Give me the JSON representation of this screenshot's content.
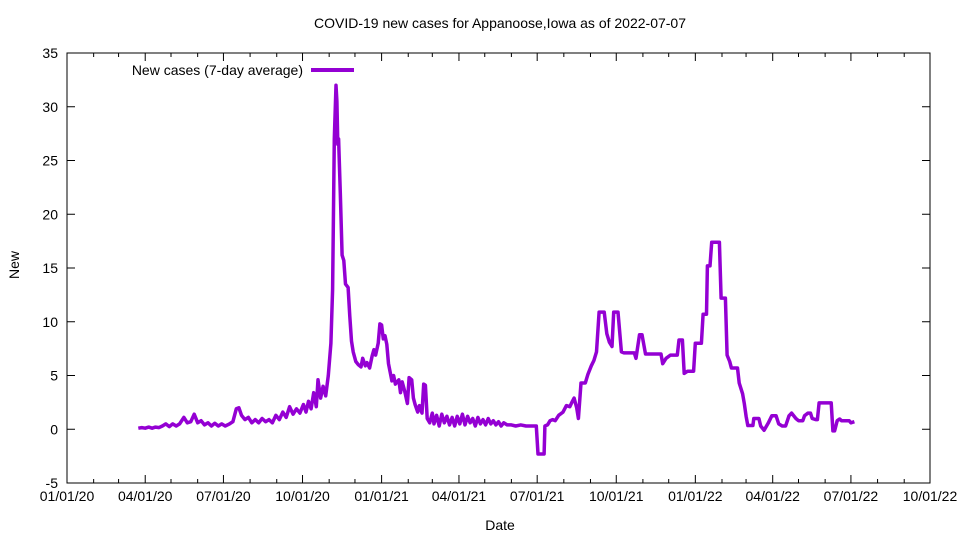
{
  "chart_data": {
    "type": "line",
    "title": "COVID-19 new cases for Appanoose,Iowa as of 2022-07-07",
    "xlabel": "Date",
    "ylabel": "New",
    "ylim": [
      -5,
      35
    ],
    "x_range": [
      "2020-01-01",
      "2022-10-01"
    ],
    "grid": false,
    "legend_position": "top-left-inside",
    "line_color": "#9400D3",
    "x_axis": {
      "tick_format": "MM/DD/YY",
      "minor_ticks": "monthly",
      "ticks": [
        {
          "label": "01/01/20",
          "date": "2020-01-01"
        },
        {
          "label": "04/01/20",
          "date": "2020-04-01"
        },
        {
          "label": "07/01/20",
          "date": "2020-07-01"
        },
        {
          "label": "10/01/20",
          "date": "2020-10-01"
        },
        {
          "label": "01/01/21",
          "date": "2021-01-01"
        },
        {
          "label": "04/01/21",
          "date": "2021-04-01"
        },
        {
          "label": "07/01/21",
          "date": "2021-07-01"
        },
        {
          "label": "10/01/21",
          "date": "2021-10-01"
        },
        {
          "label": "01/01/22",
          "date": "2022-01-01"
        },
        {
          "label": "04/01/22",
          "date": "2022-04-01"
        },
        {
          "label": "07/01/22",
          "date": "2022-07-01"
        },
        {
          "label": "10/01/22",
          "date": "2022-10-01"
        }
      ]
    },
    "y_axis": {
      "ticks": [
        -5,
        0,
        5,
        10,
        15,
        20,
        25,
        30,
        35
      ]
    },
    "series": [
      {
        "name": "New cases (7-day average)",
        "color": "#9400D3",
        "points": [
          [
            "2020-03-24",
            0.1
          ],
          [
            "2020-03-28",
            0.15
          ],
          [
            "2020-04-01",
            0.1
          ],
          [
            "2020-04-05",
            0.2
          ],
          [
            "2020-04-09",
            0.1
          ],
          [
            "2020-04-13",
            0.2
          ],
          [
            "2020-04-17",
            0.15
          ],
          [
            "2020-04-21",
            0.3
          ],
          [
            "2020-04-25",
            0.5
          ],
          [
            "2020-04-29",
            0.25
          ],
          [
            "2020-05-03",
            0.5
          ],
          [
            "2020-05-07",
            0.3
          ],
          [
            "2020-05-11",
            0.5
          ],
          [
            "2020-05-16",
            1.1
          ],
          [
            "2020-05-20",
            0.6
          ],
          [
            "2020-05-24",
            0.7
          ],
          [
            "2020-05-28",
            1.4
          ],
          [
            "2020-06-01",
            0.6
          ],
          [
            "2020-06-05",
            0.8
          ],
          [
            "2020-06-09",
            0.4
          ],
          [
            "2020-06-13",
            0.6
          ],
          [
            "2020-06-17",
            0.3
          ],
          [
            "2020-06-21",
            0.55
          ],
          [
            "2020-06-25",
            0.3
          ],
          [
            "2020-06-29",
            0.5
          ],
          [
            "2020-07-03",
            0.3
          ],
          [
            "2020-07-08",
            0.5
          ],
          [
            "2020-07-12",
            0.7
          ],
          [
            "2020-07-16",
            1.9
          ],
          [
            "2020-07-19",
            2.0
          ],
          [
            "2020-07-22",
            1.3
          ],
          [
            "2020-07-26",
            0.9
          ],
          [
            "2020-07-30",
            1.1
          ],
          [
            "2020-08-03",
            0.6
          ],
          [
            "2020-08-07",
            0.9
          ],
          [
            "2020-08-11",
            0.6
          ],
          [
            "2020-08-15",
            1.0
          ],
          [
            "2020-08-19",
            0.7
          ],
          [
            "2020-08-23",
            0.9
          ],
          [
            "2020-08-27",
            0.6
          ],
          [
            "2020-08-31",
            1.3
          ],
          [
            "2020-09-04",
            0.9
          ],
          [
            "2020-09-08",
            1.6
          ],
          [
            "2020-09-12",
            1.1
          ],
          [
            "2020-09-16",
            2.1
          ],
          [
            "2020-09-20",
            1.4
          ],
          [
            "2020-09-24",
            1.9
          ],
          [
            "2020-09-28",
            1.5
          ],
          [
            "2020-10-02",
            2.3
          ],
          [
            "2020-10-05",
            1.6
          ],
          [
            "2020-10-08",
            2.6
          ],
          [
            "2020-10-11",
            1.9
          ],
          [
            "2020-10-14",
            3.4
          ],
          [
            "2020-10-17",
            2.1
          ],
          [
            "2020-10-19",
            4.6
          ],
          [
            "2020-10-22",
            2.9
          ],
          [
            "2020-10-25",
            4.0
          ],
          [
            "2020-10-28",
            3.1
          ],
          [
            "2020-10-31",
            5.0
          ],
          [
            "2020-11-03",
            8.0
          ],
          [
            "2020-11-05",
            13.0
          ],
          [
            "2020-11-07",
            27.0
          ],
          [
            "2020-11-09",
            32.0
          ],
          [
            "2020-11-10",
            30.5
          ],
          [
            "2020-11-11",
            26.5
          ],
          [
            "2020-11-12",
            27.0
          ],
          [
            "2020-11-14",
            22.0
          ],
          [
            "2020-11-16",
            16.2
          ],
          [
            "2020-11-18",
            15.7
          ],
          [
            "2020-11-20",
            13.5
          ],
          [
            "2020-11-23",
            13.2
          ],
          [
            "2020-11-25",
            10.5
          ],
          [
            "2020-11-27",
            8.2
          ],
          [
            "2020-11-29",
            7.2
          ],
          [
            "2020-12-02",
            6.3
          ],
          [
            "2020-12-05",
            6.0
          ],
          [
            "2020-12-08",
            5.8
          ],
          [
            "2020-12-10",
            6.6
          ],
          [
            "2020-12-13",
            5.9
          ],
          [
            "2020-12-15",
            6.2
          ],
          [
            "2020-12-18",
            5.7
          ],
          [
            "2020-12-21",
            6.8
          ],
          [
            "2020-12-23",
            7.4
          ],
          [
            "2020-12-25",
            6.9
          ],
          [
            "2020-12-28",
            8.0
          ],
          [
            "2020-12-30",
            9.8
          ],
          [
            "2021-01-01",
            9.7
          ],
          [
            "2021-01-03",
            8.4
          ],
          [
            "2021-01-05",
            8.7
          ],
          [
            "2021-01-07",
            7.9
          ],
          [
            "2021-01-09",
            6.1
          ],
          [
            "2021-01-11",
            5.3
          ],
          [
            "2021-01-13",
            4.5
          ],
          [
            "2021-01-15",
            5.0
          ],
          [
            "2021-01-17",
            4.2
          ],
          [
            "2021-01-21",
            4.6
          ],
          [
            "2021-01-23",
            3.4
          ],
          [
            "2021-01-25",
            4.4
          ],
          [
            "2021-01-28",
            3.5
          ],
          [
            "2021-01-31",
            2.4
          ],
          [
            "2021-02-02",
            4.8
          ],
          [
            "2021-02-05",
            4.6
          ],
          [
            "2021-02-07",
            2.9
          ],
          [
            "2021-02-09",
            2.3
          ],
          [
            "2021-02-12",
            1.6
          ],
          [
            "2021-02-14",
            2.2
          ],
          [
            "2021-02-17",
            1.5
          ],
          [
            "2021-02-19",
            4.2
          ],
          [
            "2021-02-21",
            4.1
          ],
          [
            "2021-02-23",
            1.0
          ],
          [
            "2021-02-26",
            0.6
          ],
          [
            "2021-03-01",
            1.5
          ],
          [
            "2021-03-03",
            0.5
          ],
          [
            "2021-03-06",
            1.3
          ],
          [
            "2021-03-09",
            0.3
          ],
          [
            "2021-03-12",
            1.4
          ],
          [
            "2021-03-15",
            0.6
          ],
          [
            "2021-03-18",
            1.2
          ],
          [
            "2021-03-21",
            0.4
          ],
          [
            "2021-03-24",
            1.1
          ],
          [
            "2021-03-27",
            0.3
          ],
          [
            "2021-03-30",
            1.2
          ],
          [
            "2021-04-02",
            0.5
          ],
          [
            "2021-04-05",
            1.4
          ],
          [
            "2021-04-08",
            0.4
          ],
          [
            "2021-04-11",
            1.2
          ],
          [
            "2021-04-14",
            0.6
          ],
          [
            "2021-04-17",
            1.0
          ],
          [
            "2021-04-20",
            0.3
          ],
          [
            "2021-04-23",
            1.1
          ],
          [
            "2021-04-26",
            0.5
          ],
          [
            "2021-04-29",
            0.9
          ],
          [
            "2021-05-02",
            0.4
          ],
          [
            "2021-05-05",
            1.0
          ],
          [
            "2021-05-08",
            0.5
          ],
          [
            "2021-05-11",
            0.8
          ],
          [
            "2021-05-14",
            0.4
          ],
          [
            "2021-05-17",
            0.7
          ],
          [
            "2021-05-20",
            0.3
          ],
          [
            "2021-05-23",
            0.6
          ],
          [
            "2021-05-27",
            0.4
          ],
          [
            "2021-06-01",
            0.4
          ],
          [
            "2021-06-06",
            0.3
          ],
          [
            "2021-06-12",
            0.4
          ],
          [
            "2021-06-18",
            0.3
          ],
          [
            "2021-06-24",
            0.3
          ],
          [
            "2021-06-30",
            0.3
          ],
          [
            "2021-07-02",
            -2.3
          ],
          [
            "2021-07-09",
            -2.3
          ],
          [
            "2021-07-10",
            0.3
          ],
          [
            "2021-07-13",
            0.4
          ],
          [
            "2021-07-16",
            0.8
          ],
          [
            "2021-07-19",
            0.9
          ],
          [
            "2021-07-22",
            0.8
          ],
          [
            "2021-07-26",
            1.3
          ],
          [
            "2021-07-31",
            1.6
          ],
          [
            "2021-08-04",
            2.2
          ],
          [
            "2021-08-08",
            2.1
          ],
          [
            "2021-08-11",
            2.6
          ],
          [
            "2021-08-13",
            2.9
          ],
          [
            "2021-08-16",
            2.0
          ],
          [
            "2021-08-18",
            1.0
          ],
          [
            "2021-08-21",
            4.3
          ],
          [
            "2021-08-26",
            4.3
          ],
          [
            "2021-08-29",
            5.1
          ],
          [
            "2021-09-02",
            5.9
          ],
          [
            "2021-09-05",
            6.4
          ],
          [
            "2021-09-08",
            7.2
          ],
          [
            "2021-09-11",
            10.9
          ],
          [
            "2021-09-17",
            10.9
          ],
          [
            "2021-09-20",
            8.9
          ],
          [
            "2021-09-23",
            8.1
          ],
          [
            "2021-09-26",
            7.7
          ],
          [
            "2021-09-28",
            10.9
          ],
          [
            "2021-10-03",
            10.9
          ],
          [
            "2021-10-07",
            7.2
          ],
          [
            "2021-10-10",
            7.1
          ],
          [
            "2021-10-22",
            7.1
          ],
          [
            "2021-10-24",
            6.6
          ],
          [
            "2021-10-28",
            8.8
          ],
          [
            "2021-10-31",
            8.8
          ],
          [
            "2021-11-04",
            7.0
          ],
          [
            "2021-11-22",
            7.0
          ],
          [
            "2021-11-24",
            6.1
          ],
          [
            "2021-11-28",
            6.6
          ],
          [
            "2021-12-03",
            6.9
          ],
          [
            "2021-12-11",
            6.9
          ],
          [
            "2021-12-13",
            8.3
          ],
          [
            "2021-12-17",
            8.3
          ],
          [
            "2021-12-19",
            5.2
          ],
          [
            "2021-12-23",
            5.4
          ],
          [
            "2021-12-30",
            5.4
          ],
          [
            "2022-01-01",
            8.0
          ],
          [
            "2022-01-08",
            8.0
          ],
          [
            "2022-01-10",
            10.7
          ],
          [
            "2022-01-14",
            10.7
          ],
          [
            "2022-01-15",
            15.2
          ],
          [
            "2022-01-18",
            15.2
          ],
          [
            "2022-01-20",
            17.4
          ],
          [
            "2022-01-29",
            17.4
          ],
          [
            "2022-01-31",
            12.2
          ],
          [
            "2022-02-05",
            12.2
          ],
          [
            "2022-02-07",
            6.9
          ],
          [
            "2022-02-10",
            6.3
          ],
          [
            "2022-02-12",
            5.7
          ],
          [
            "2022-02-19",
            5.7
          ],
          [
            "2022-02-21",
            4.3
          ],
          [
            "2022-02-25",
            3.3
          ],
          [
            "2022-02-27",
            2.4
          ],
          [
            "2022-03-01",
            1.2
          ],
          [
            "2022-03-03",
            0.35
          ],
          [
            "2022-03-09",
            0.35
          ],
          [
            "2022-03-10",
            1.0
          ],
          [
            "2022-03-16",
            1.0
          ],
          [
            "2022-03-18",
            0.3
          ],
          [
            "2022-03-22",
            -0.1
          ],
          [
            "2022-03-27",
            0.6
          ],
          [
            "2022-03-31",
            1.25
          ],
          [
            "2022-04-05",
            1.25
          ],
          [
            "2022-04-08",
            0.5
          ],
          [
            "2022-04-12",
            0.3
          ],
          [
            "2022-04-16",
            0.3
          ],
          [
            "2022-04-20",
            1.25
          ],
          [
            "2022-04-23",
            1.5
          ],
          [
            "2022-04-28",
            1.0
          ],
          [
            "2022-05-01",
            0.8
          ],
          [
            "2022-05-06",
            0.8
          ],
          [
            "2022-05-08",
            1.25
          ],
          [
            "2022-05-12",
            1.5
          ],
          [
            "2022-05-15",
            1.5
          ],
          [
            "2022-05-17",
            1.0
          ],
          [
            "2022-05-21",
            0.9
          ],
          [
            "2022-05-23",
            0.9
          ],
          [
            "2022-05-25",
            2.45
          ],
          [
            "2022-06-08",
            2.45
          ],
          [
            "2022-06-10",
            -0.15
          ],
          [
            "2022-06-12",
            -0.15
          ],
          [
            "2022-06-15",
            0.8
          ],
          [
            "2022-06-18",
            0.95
          ],
          [
            "2022-06-20",
            0.8
          ],
          [
            "2022-06-29",
            0.8
          ],
          [
            "2022-07-01",
            0.6
          ],
          [
            "2022-07-05",
            0.7
          ]
        ]
      }
    ]
  }
}
